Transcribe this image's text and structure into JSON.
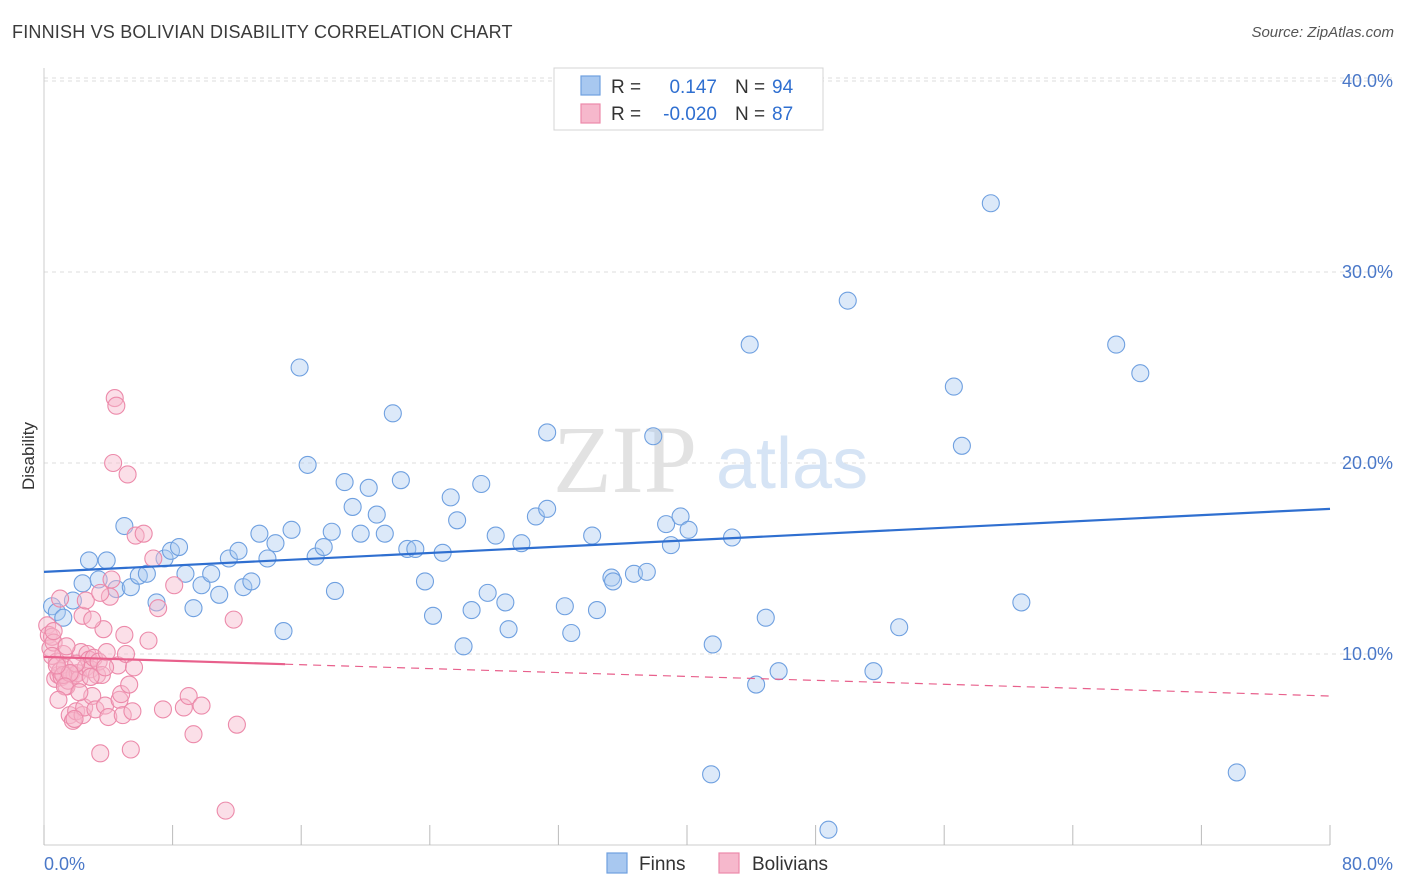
{
  "title": "FINNISH VS BOLIVIAN DISABILITY CORRELATION CHART",
  "source": "Source: ZipAtlas.com",
  "watermark": {
    "part1": "ZIP",
    "part2": "atlas"
  },
  "colors": {
    "finns_fill": "#a8c8f0",
    "finns_stroke": "#6fa0e0",
    "finns_line": "#2f6fd0",
    "bolivians_fill": "#f6b8cc",
    "bolivians_stroke": "#ec8aaa",
    "bolivians_line": "#e8608c",
    "axis_text": "#4a78c8",
    "grid": "#dddddd"
  },
  "legend": {
    "rows": [
      {
        "r_label": "R =",
        "r_value": "0.147",
        "n_label": "N =",
        "n_value": "94"
      },
      {
        "r_label": "R =",
        "r_value": "-0.020",
        "n_label": "N =",
        "n_value": "87"
      }
    ],
    "bottom": [
      "Finns",
      "Bolivians"
    ]
  },
  "chart_data": {
    "type": "scatter",
    "title": "FINNISH VS BOLIVIAN DISABILITY CORRELATION CHART",
    "xlabel": "",
    "ylabel": "Disability",
    "xlim": [
      0,
      80
    ],
    "ylim": [
      0,
      42
    ],
    "x_ticks": [
      "0.0%",
      "80.0%"
    ],
    "y_ticks": [
      {
        "value": 10,
        "label": "10.0%"
      },
      {
        "value": 20,
        "label": "20.0%"
      },
      {
        "value": 30,
        "label": "30.0%"
      },
      {
        "value": 40,
        "label": "40.0%"
      }
    ],
    "grid": true,
    "legend_position": "top-center",
    "series": [
      {
        "name": "Finns",
        "trend": {
          "x0": 0,
          "y0": 14.3,
          "x1": 80,
          "y1": 17.6,
          "solid_to": 80
        },
        "points": [
          [
            0.5,
            12.5
          ],
          [
            0.8,
            12.2
          ],
          [
            1.2,
            11.9
          ],
          [
            1.8,
            12.8
          ],
          [
            2.4,
            13.7
          ],
          [
            2.8,
            14.9
          ],
          [
            3.4,
            13.9
          ],
          [
            3.9,
            14.9
          ],
          [
            4.5,
            13.4
          ],
          [
            5.0,
            16.7
          ],
          [
            5.4,
            13.5
          ],
          [
            5.9,
            14.1
          ],
          [
            6.4,
            14.2
          ],
          [
            7.0,
            12.7
          ],
          [
            7.5,
            15.0
          ],
          [
            7.9,
            15.4
          ],
          [
            8.4,
            15.6
          ],
          [
            8.8,
            14.2
          ],
          [
            9.3,
            12.4
          ],
          [
            9.8,
            13.6
          ],
          [
            10.4,
            14.2
          ],
          [
            10.9,
            13.1
          ],
          [
            11.5,
            15.0
          ],
          [
            12.1,
            15.4
          ],
          [
            12.4,
            13.5
          ],
          [
            12.9,
            13.8
          ],
          [
            13.4,
            16.3
          ],
          [
            13.9,
            15.0
          ],
          [
            14.4,
            15.8
          ],
          [
            14.9,
            11.2
          ],
          [
            15.4,
            16.5
          ],
          [
            15.9,
            25.0
          ],
          [
            16.4,
            19.9
          ],
          [
            16.9,
            15.1
          ],
          [
            17.4,
            15.6
          ],
          [
            17.9,
            16.4
          ],
          [
            18.1,
            13.3
          ],
          [
            18.7,
            19.0
          ],
          [
            19.2,
            17.7
          ],
          [
            19.7,
            16.3
          ],
          [
            20.2,
            18.7
          ],
          [
            20.7,
            17.3
          ],
          [
            21.2,
            16.3
          ],
          [
            21.7,
            22.6
          ],
          [
            22.2,
            19.1
          ],
          [
            22.6,
            15.5
          ],
          [
            23.1,
            15.5
          ],
          [
            23.7,
            13.8
          ],
          [
            24.2,
            12.0
          ],
          [
            24.8,
            15.3
          ],
          [
            25.3,
            18.2
          ],
          [
            25.7,
            17.0
          ],
          [
            26.1,
            10.4
          ],
          [
            26.6,
            12.3
          ],
          [
            27.2,
            18.9
          ],
          [
            27.6,
            13.2
          ],
          [
            28.1,
            16.2
          ],
          [
            28.7,
            12.7
          ],
          [
            28.9,
            11.3
          ],
          [
            29.7,
            15.8
          ],
          [
            30.6,
            17.2
          ],
          [
            31.3,
            17.6
          ],
          [
            31.3,
            21.6
          ],
          [
            32.4,
            12.5
          ],
          [
            32.8,
            11.1
          ],
          [
            34.1,
            16.2
          ],
          [
            34.4,
            12.3
          ],
          [
            35.3,
            14.0
          ],
          [
            35.4,
            13.8
          ],
          [
            36.7,
            14.2
          ],
          [
            37.5,
            14.3
          ],
          [
            37.9,
            21.4
          ],
          [
            38.7,
            16.8
          ],
          [
            39.0,
            15.7
          ],
          [
            39.6,
            17.2
          ],
          [
            40.1,
            16.5
          ],
          [
            41.5,
            3.7
          ],
          [
            41.6,
            10.5
          ],
          [
            42.8,
            16.1
          ],
          [
            43.9,
            26.2
          ],
          [
            44.3,
            8.4
          ],
          [
            44.9,
            11.9
          ],
          [
            45.7,
            9.1
          ],
          [
            48.8,
            0.8
          ],
          [
            50.0,
            28.5
          ],
          [
            51.6,
            9.1
          ],
          [
            53.2,
            11.4
          ],
          [
            56.6,
            24.0
          ],
          [
            57.1,
            20.9
          ],
          [
            58.9,
            33.6
          ],
          [
            60.8,
            12.7
          ],
          [
            66.7,
            26.2
          ],
          [
            68.2,
            24.7
          ],
          [
            74.2,
            3.8
          ]
        ]
      },
      {
        "name": "Bolivians",
        "trend": {
          "x0": 0,
          "y0": 9.85,
          "x1": 80,
          "y1": 7.8,
          "solid_to": 15.0
        },
        "points": [
          [
            0.2,
            11.5
          ],
          [
            0.3,
            11.0
          ],
          [
            0.4,
            10.3
          ],
          [
            0.5,
            10.9
          ],
          [
            0.6,
            10.6
          ],
          [
            0.7,
            8.7
          ],
          [
            0.8,
            9.6
          ],
          [
            0.9,
            8.9
          ],
          [
            1.0,
            9.1
          ],
          [
            1.1,
            8.8
          ],
          [
            1.2,
            10.0
          ],
          [
            1.3,
            9.3
          ],
          [
            1.4,
            8.3
          ],
          [
            1.5,
            8.6
          ],
          [
            1.6,
            6.8
          ],
          [
            1.7,
            9.0
          ],
          [
            1.8,
            6.5
          ],
          [
            1.9,
            8.9
          ],
          [
            2.0,
            7.0
          ],
          [
            2.1,
            9.0
          ],
          [
            2.2,
            8.7
          ],
          [
            2.3,
            10.1
          ],
          [
            2.4,
            6.8
          ],
          [
            2.5,
            7.2
          ],
          [
            2.6,
            9.3
          ],
          [
            2.7,
            10.0
          ],
          [
            2.8,
            9.7
          ],
          [
            2.9,
            9.2
          ],
          [
            3.0,
            7.8
          ],
          [
            3.1,
            9.8
          ],
          [
            3.2,
            7.1
          ],
          [
            3.3,
            8.9
          ],
          [
            3.4,
            9.6
          ],
          [
            3.5,
            4.8
          ],
          [
            3.6,
            8.9
          ],
          [
            3.7,
            11.3
          ],
          [
            3.8,
            7.3
          ],
          [
            3.9,
            10.1
          ],
          [
            4.0,
            6.7
          ],
          [
            4.1,
            13.0
          ],
          [
            4.3,
            20.0
          ],
          [
            4.4,
            23.4
          ],
          [
            4.5,
            23.0
          ],
          [
            4.6,
            9.4
          ],
          [
            4.7,
            7.6
          ],
          [
            4.8,
            7.9
          ],
          [
            4.9,
            6.8
          ],
          [
            5.0,
            11.0
          ],
          [
            5.1,
            10.0
          ],
          [
            5.2,
            19.4
          ],
          [
            5.3,
            8.4
          ],
          [
            5.4,
            5.0
          ],
          [
            5.5,
            7.0
          ],
          [
            5.6,
            9.3
          ],
          [
            5.7,
            16.2
          ],
          [
            6.2,
            16.3
          ],
          [
            6.5,
            10.7
          ],
          [
            6.8,
            15.0
          ],
          [
            7.1,
            12.4
          ],
          [
            7.4,
            7.1
          ],
          [
            8.1,
            13.6
          ],
          [
            8.7,
            7.2
          ],
          [
            9.0,
            7.8
          ],
          [
            9.3,
            5.8
          ],
          [
            9.8,
            7.3
          ],
          [
            11.3,
            1.8
          ],
          [
            11.8,
            11.8
          ],
          [
            12.0,
            6.3
          ],
          [
            1.2,
            8.9
          ],
          [
            2.0,
            9.5
          ],
          [
            0.5,
            9.9
          ],
          [
            1.6,
            9.0
          ],
          [
            2.9,
            8.8
          ],
          [
            1.3,
            8.3
          ],
          [
            0.8,
            9.4
          ],
          [
            2.4,
            12.0
          ],
          [
            3.0,
            11.8
          ],
          [
            0.6,
            11.2
          ],
          [
            1.9,
            6.6
          ],
          [
            2.6,
            12.8
          ],
          [
            3.8,
            9.3
          ],
          [
            4.2,
            13.9
          ],
          [
            1.0,
            12.9
          ],
          [
            0.9,
            7.6
          ],
          [
            2.2,
            8.0
          ],
          [
            1.4,
            10.4
          ],
          [
            3.5,
            13.2
          ]
        ]
      }
    ]
  }
}
